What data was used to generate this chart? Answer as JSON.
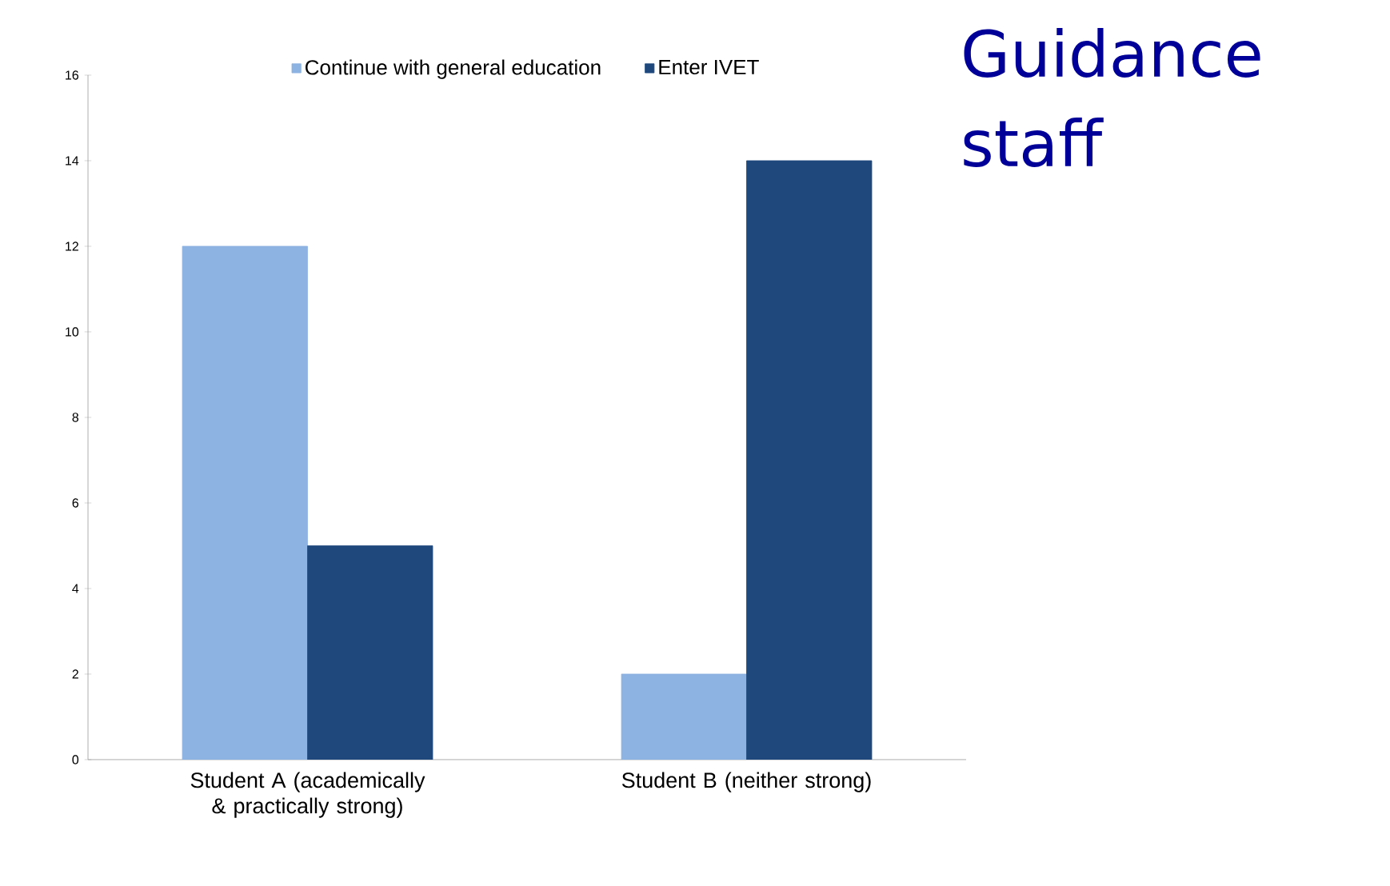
{
  "chart_data": {
    "type": "bar",
    "title": "Guidance staff",
    "categories": [
      "Student A (academically & practically strong)",
      "Student B (neither strong)"
    ],
    "series": [
      {
        "name": "Continue with general education",
        "color": "#8db3e2",
        "values": [
          12,
          2
        ]
      },
      {
        "name": "Enter IVET",
        "color": "#1f497d",
        "values": [
          5,
          14
        ]
      }
    ],
    "ylim": [
      0,
      16
    ],
    "yticks": [
      0,
      2,
      4,
      6,
      8,
      10,
      12,
      14,
      16
    ],
    "grid": false,
    "legend": "top"
  }
}
